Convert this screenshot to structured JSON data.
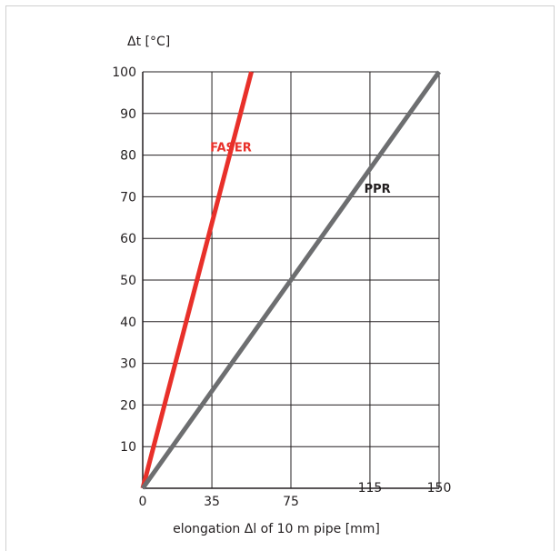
{
  "chart_data": {
    "type": "line",
    "title": "",
    "ylabel": "Δt [°C]",
    "xlabel": "elongation Δl of 10 m pipe [mm]",
    "xlim": [
      0,
      150
    ],
    "ylim": [
      0,
      100
    ],
    "x_ticks": [
      0,
      35,
      75,
      115,
      150
    ],
    "x_tick_labels": [
      "0",
      "35",
      "75",
      "115",
      "150"
    ],
    "y_ticks": [
      10,
      20,
      30,
      40,
      50,
      60,
      70,
      80,
      90,
      100
    ],
    "y_tick_labels": [
      "10",
      "20",
      "30",
      "40",
      "50",
      "60",
      "70",
      "80",
      "90",
      "100"
    ],
    "grid": true,
    "series": [
      {
        "name": "FASER",
        "color": "#e8302a",
        "x": [
          0,
          55
        ],
        "y": [
          0,
          100
        ],
        "label_at": [
          41,
          82
        ]
      },
      {
        "name": "PPR",
        "color": "#6d6e70",
        "x": [
          0,
          150
        ],
        "y": [
          0,
          100
        ],
        "label_at": [
          113,
          72
        ]
      }
    ]
  }
}
